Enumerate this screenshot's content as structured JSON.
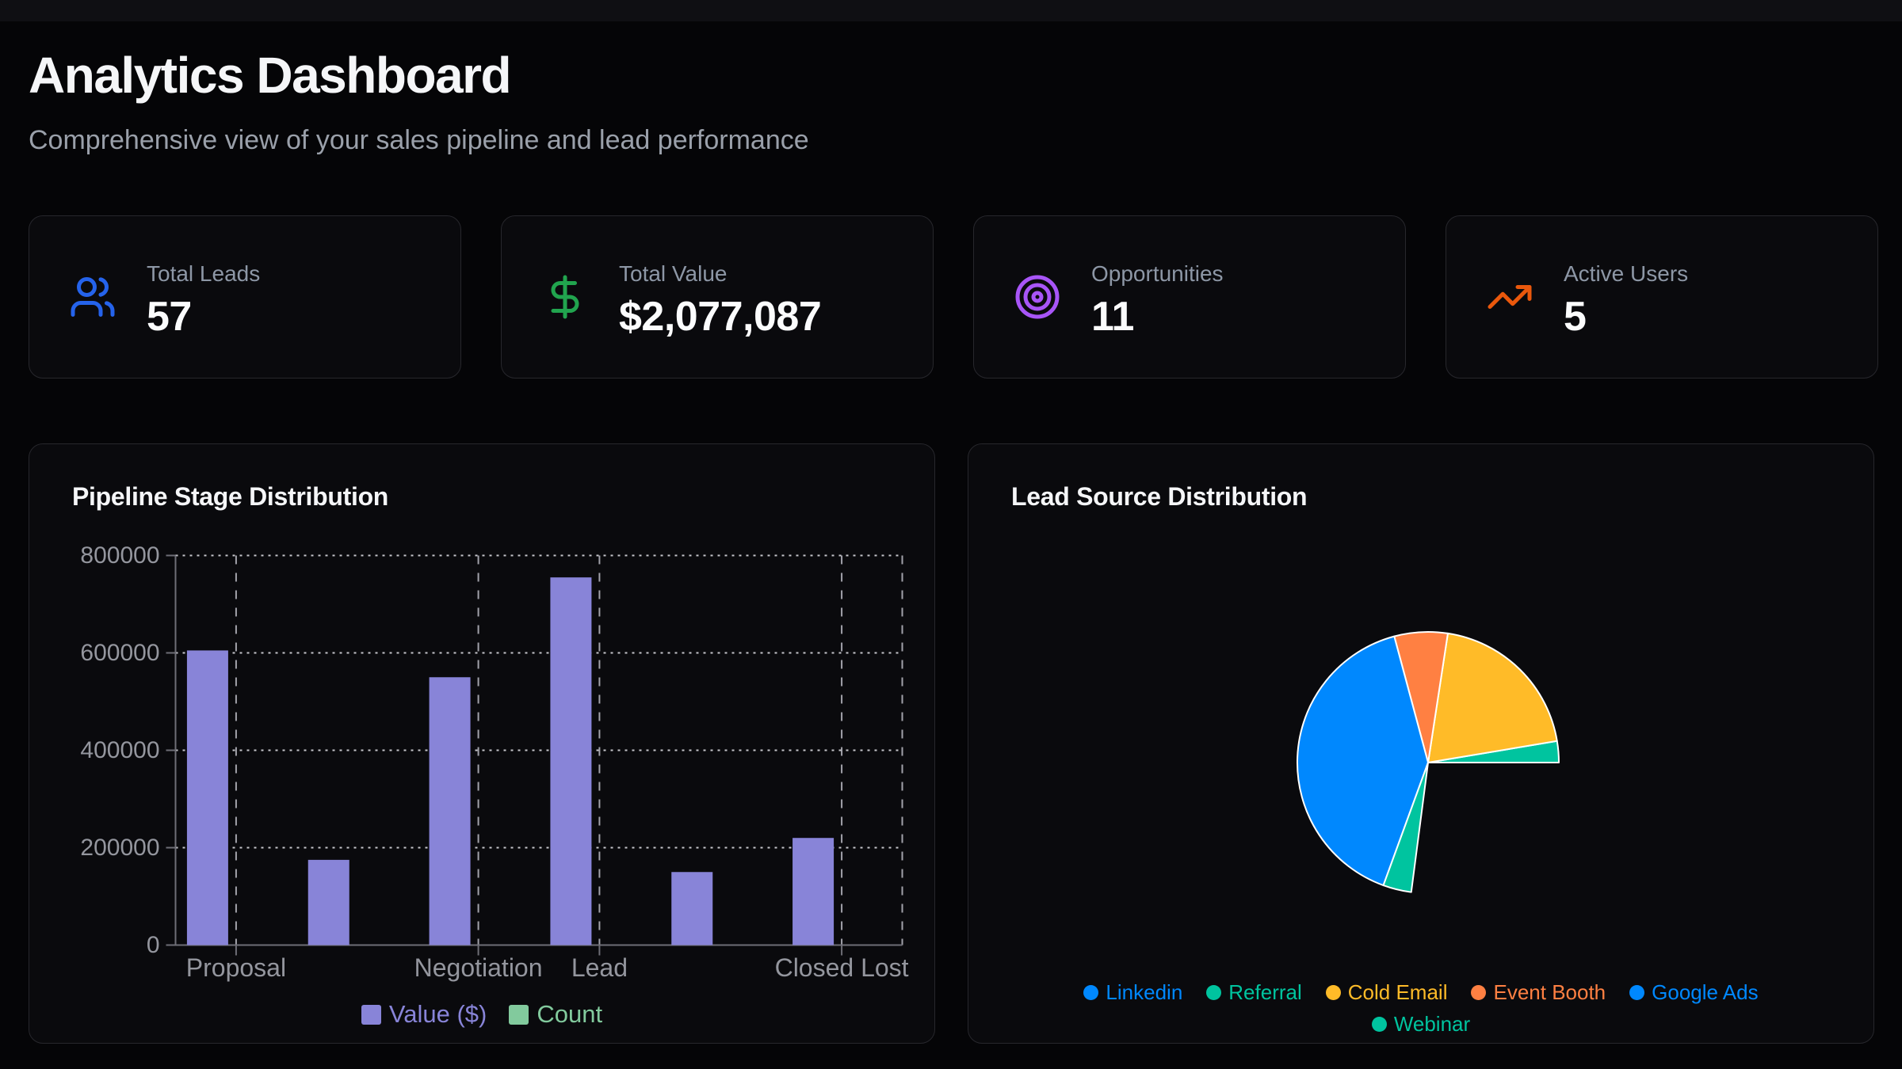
{
  "page": {
    "background_color": "#050507",
    "topbar_color": "#0f0f13",
    "card_background": "#0a0a0d",
    "card_border": "#27272c"
  },
  "header": {
    "title": "Analytics Dashboard",
    "subtitle": "Comprehensive view of your sales pipeline and lead performance"
  },
  "stats": [
    {
      "label": "Total Leads",
      "value": "57",
      "icon": "users-icon",
      "icon_color": "#2563eb"
    },
    {
      "label": "Total Value",
      "value": "$2,077,087",
      "icon": "dollar-sign-icon",
      "icon_color": "#21a44e"
    },
    {
      "label": "Opportunities",
      "value": "11",
      "icon": "target-icon",
      "icon_color": "#a855f7"
    },
    {
      "label": "Active Users",
      "value": "5",
      "icon": "trending-up-icon",
      "icon_color": "#ea580c"
    }
  ],
  "chart_data": [
    {
      "type": "bar",
      "title": "Pipeline Stage Distribution",
      "categories": [
        "Proposal",
        "",
        "Negotiation",
        "Lead",
        "",
        "Closed Lost"
      ],
      "shown_tick_indices": [
        0,
        2,
        3,
        5
      ],
      "note": "6 category slots; tick labels/gridlines at slots 2 and 5 are not shown in the screenshot",
      "series": [
        {
          "name": "Value ($)",
          "color": "#8884d8",
          "values": [
            605000,
            175000,
            550000,
            755000,
            150000,
            220000
          ]
        },
        {
          "name": "Count",
          "color": "#82ca9d",
          "values": [
            0,
            0,
            0,
            0,
            0,
            0
          ],
          "series_note": "count bars are rendered at ~0 px height (not visible)"
        }
      ],
      "xlabel": "",
      "ylabel": "",
      "ylim": [
        0,
        800000
      ],
      "y_ticks": [
        0,
        200000,
        400000,
        600000,
        800000
      ],
      "grid": "dashed",
      "axis_color": "#6e6e76",
      "tick_label_color": "#94969e",
      "legend_position": "bottom"
    },
    {
      "type": "pie",
      "title": "Lead Source Distribution",
      "slices": [
        {
          "label": "Linkedin",
          "color": "#0088FE",
          "start_deg": 262.6,
          "end_deg": 360,
          "visible": false,
          "est_value": 15
        },
        {
          "label": "Referral",
          "color": "#00C49F",
          "start_deg": 0,
          "end_deg": 9.5,
          "visible": true,
          "est_value": 2
        },
        {
          "label": "Cold Email",
          "color": "#FFBB28",
          "start_deg": 9.5,
          "end_deg": 81.3,
          "visible": true,
          "est_value": 11
        },
        {
          "label": "Event Booth",
          "color": "#FF8042",
          "start_deg": 81.3,
          "end_deg": 105,
          "visible": true,
          "est_value": 4
        },
        {
          "label": "Google Ads",
          "color": "#0088FE",
          "start_deg": 105,
          "end_deg": 250,
          "visible": true,
          "est_value": 23
        },
        {
          "label": "Webinar",
          "color": "#00C49F",
          "start_deg": 250,
          "end_deg": 262.6,
          "visible": true,
          "est_value": 2
        }
      ],
      "slice_stroke": "#ffffff",
      "angles_note": "degrees measured counterclockwise from 3 o'clock; Linkedin slice occupies the bottom-right gap but is not rendered",
      "legend_rows": [
        5,
        1
      ],
      "legend_position": "bottom"
    }
  ]
}
